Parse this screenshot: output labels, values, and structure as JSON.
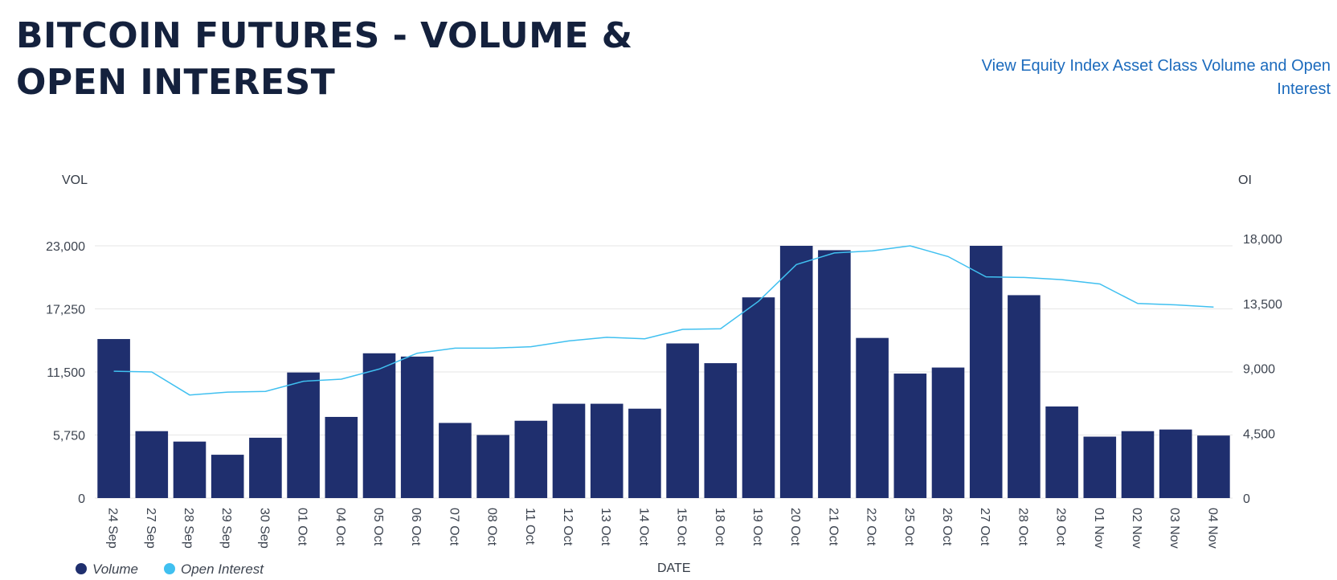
{
  "header": {
    "title": "BITCOIN FUTURES - VOLUME & OPEN INTEREST",
    "link_label": "View Equity Index Asset Class Volume and Open Interest"
  },
  "colors": {
    "volume_bar": "#1f2f6e",
    "open_interest_line": "#40c0f0",
    "grid": "#e6e6e6",
    "title": "#14213d",
    "link": "#1c6bbd"
  },
  "chart_data": {
    "type": "bar",
    "xlabel": "DATE",
    "ylabel_left": "VOL",
    "ylabel_right": "OI",
    "ylim_left": [
      0,
      23000
    ],
    "ylim_right": [
      0,
      18000
    ],
    "yticks_left": [
      "0",
      "5,750",
      "11,500",
      "17,250",
      "23,000"
    ],
    "yticks_right": [
      "0",
      "4,500",
      "9,000",
      "13,500",
      "18,000"
    ],
    "grid": true,
    "legend_position": "bottom-left",
    "categories": [
      "24 Sep",
      "27 Sep",
      "28 Sep",
      "29 Sep",
      "30 Sep",
      "01 Oct",
      "04 Oct",
      "05 Oct",
      "06 Oct",
      "07 Oct",
      "08 Oct",
      "11 Oct",
      "12 Oct",
      "13 Oct",
      "14 Oct",
      "15 Oct",
      "18 Oct",
      "19 Oct",
      "20 Oct",
      "21 Oct",
      "22 Oct",
      "25 Oct",
      "26 Oct",
      "27 Oct",
      "28 Oct",
      "29 Oct",
      "01 Nov",
      "02 Nov",
      "03 Nov",
      "04 Nov"
    ],
    "series": [
      {
        "name": "Volume",
        "type": "bar",
        "axis": "left",
        "values": [
          14500,
          6100,
          5150,
          3950,
          5500,
          11450,
          7400,
          13200,
          12900,
          6850,
          5750,
          7050,
          8600,
          8600,
          8150,
          14100,
          12300,
          18300,
          23000,
          22600,
          14600,
          11350,
          11900,
          23000,
          18500,
          8350,
          5600,
          6100,
          6250,
          5700
        ]
      },
      {
        "name": "Open Interest",
        "type": "line",
        "axis": "right",
        "values": [
          8800,
          8750,
          7150,
          7350,
          7400,
          8100,
          8250,
          8950,
          10050,
          10400,
          10400,
          10500,
          10900,
          11150,
          11050,
          11700,
          11750,
          13650,
          16200,
          17000,
          17150,
          17500,
          16750,
          15350,
          15300,
          15150,
          14850,
          13500,
          13400,
          13250
        ]
      }
    ]
  }
}
